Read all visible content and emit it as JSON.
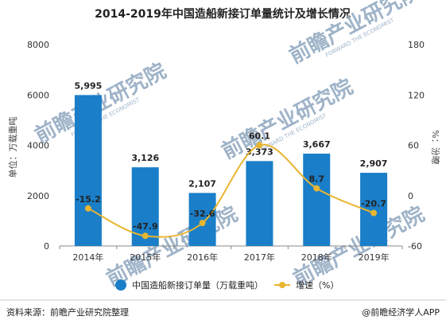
{
  "chart_data": {
    "type": "bar",
    "title": "2014-2019年中国造船新接订单量统计及增长情况",
    "categories": [
      "2014年",
      "2015年",
      "2016年",
      "2017年",
      "2018年",
      "2019年"
    ],
    "series": [
      {
        "name": "中国造船新接订单量（万载重吨）",
        "type": "bar",
        "axis": "left",
        "color": "#1a7ec8",
        "values": [
          5995,
          3126,
          2107,
          3373,
          3667,
          2907
        ],
        "labels": [
          "5,995",
          "3,126",
          "2,107",
          "3,373",
          "3,667",
          "2,907"
        ]
      },
      {
        "name": "增速（%）",
        "type": "line",
        "axis": "right",
        "color": "#e8b530",
        "values": [
          -15.2,
          -47.9,
          -32.6,
          60.1,
          8.7,
          -20.7
        ],
        "labels": [
          "-15.2",
          "-47.9",
          "-32.6",
          "60.1",
          "8.7",
          "-20.7"
        ]
      }
    ],
    "ylabel": "单位：万载重吨",
    "y2label": "%：汾暸",
    "ylim": [
      0,
      8000
    ],
    "yticks": [
      "0",
      "2000",
      "4000",
      "6000",
      "8000"
    ],
    "y2lim": [
      -60,
      180
    ],
    "y2ticks": [
      "-60",
      "0",
      "60",
      "120",
      "180"
    ],
    "grid": false,
    "legend": "bottom"
  },
  "watermark": {
    "text": "前瞻产业研究院",
    "sub": "FORWARD THE ECONOMIST"
  },
  "footer": {
    "source": "资料来源：前瞻产业研究院整理",
    "credit": "@前瞻经济学人APP"
  }
}
